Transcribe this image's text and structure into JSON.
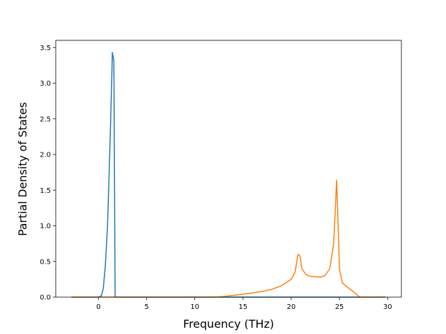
{
  "chart_data": {
    "type": "line",
    "xlabel": "Frequency (THz)",
    "ylabel": "Partial Density of States",
    "xlim": [
      -4.43,
      31.43
    ],
    "ylim": [
      0,
      3.6
    ],
    "xticks": [
      0,
      5,
      10,
      15,
      20,
      25,
      30
    ],
    "yticks": [
      {
        "value": 0,
        "label": "0.0"
      },
      {
        "value": 0.5,
        "label": "0.5"
      },
      {
        "value": 1,
        "label": "1.0"
      },
      {
        "value": 1.5,
        "label": "1.5"
      },
      {
        "value": 2,
        "label": "2.0"
      },
      {
        "value": 2.5,
        "label": "2.5"
      },
      {
        "value": 3,
        "label": "3.0"
      },
      {
        "value": 3.5,
        "label": "3.5"
      }
    ],
    "series": [
      {
        "color": "#1f77b4",
        "x": [
          -2.8,
          0,
          0.3,
          0.5,
          0.72,
          0.94,
          1.08,
          1.23,
          1.37,
          1.44,
          1.55,
          1.6,
          1.73,
          29.8
        ],
        "values": [
          0,
          0,
          0.02,
          0.12,
          0.45,
          1.0,
          1.6,
          2.3,
          3.0,
          3.43,
          3.35,
          3.3,
          0,
          0
        ]
      },
      {
        "color": "#ff7f0e",
        "x": [
          -2.8,
          12,
          13,
          15,
          17,
          18,
          19,
          20,
          20.4,
          20.7,
          20.9,
          21.1,
          21.5,
          22,
          23,
          23.5,
          24,
          24.4,
          24.6,
          24.7,
          24.8,
          25,
          25.3,
          26,
          26.7,
          27,
          27.2,
          29.8
        ],
        "values": [
          0,
          0,
          0.01,
          0.04,
          0.08,
          0.11,
          0.16,
          0.25,
          0.35,
          0.6,
          0.58,
          0.4,
          0.32,
          0.29,
          0.28,
          0.3,
          0.4,
          0.75,
          1.3,
          1.64,
          1.3,
          0.4,
          0.2,
          0.12,
          0.05,
          0.01,
          0,
          0
        ]
      }
    ]
  }
}
